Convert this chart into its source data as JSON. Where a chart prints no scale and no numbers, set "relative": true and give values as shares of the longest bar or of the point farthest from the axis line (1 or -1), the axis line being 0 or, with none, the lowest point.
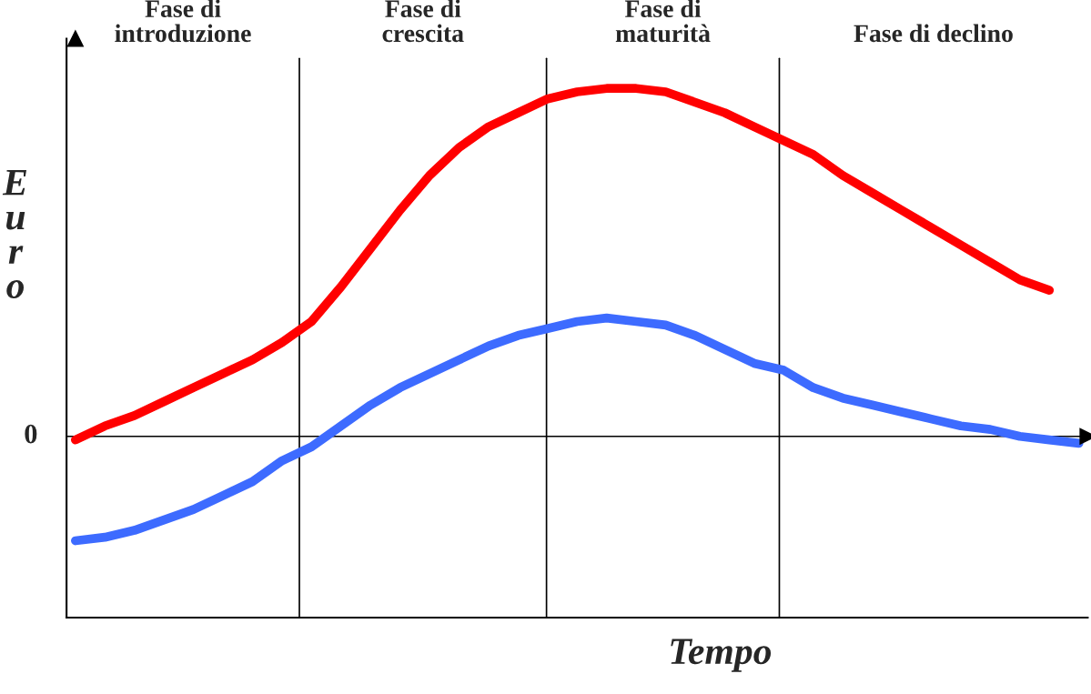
{
  "chart_data": {
    "type": "line",
    "relative": true,
    "xlabel": "Tempo",
    "ylabel": "E\nu\nr\no",
    "line_style": "solid",
    "categories": [
      null,
      null,
      null,
      null,
      null,
      null,
      null,
      null,
      null,
      null,
      null,
      null,
      null,
      null,
      null,
      null,
      null,
      null,
      null,
      null,
      null,
      null,
      null,
      null,
      null,
      null,
      null,
      null,
      null,
      null,
      null,
      null,
      null,
      null,
      null
    ],
    "series": [
      {
        "color": "#ff0000",
        "values": [
          -0.01,
          0.03,
          0.06,
          0.1,
          0.14,
          0.18,
          0.22,
          0.27,
          0.33,
          0.43,
          0.54,
          0.65,
          0.75,
          0.83,
          0.89,
          0.93,
          0.97,
          0.99,
          1.0,
          1.0,
          0.99,
          0.96,
          0.93,
          0.89,
          0.85,
          0.81,
          0.75,
          0.7,
          0.65,
          0.6,
          0.55,
          0.5,
          0.45,
          0.42,
          null
        ]
      },
      {
        "color": "#3d6bff",
        "values": [
          -0.3,
          -0.29,
          -0.27,
          -0.24,
          -0.21,
          -0.17,
          -0.13,
          -0.07,
          -0.03,
          0.03,
          0.09,
          0.14,
          0.18,
          0.22,
          0.26,
          0.29,
          0.31,
          0.33,
          0.34,
          0.33,
          0.32,
          0.29,
          0.25,
          0.21,
          0.19,
          0.14,
          0.11,
          0.09,
          0.07,
          0.05,
          0.03,
          0.02,
          0.0,
          -0.01,
          -0.02
        ]
      }
    ],
    "ref_lines": [
      {
        "axis": "y",
        "value": 0,
        "label": "0",
        "color": "#000000"
      }
    ],
    "annotations": [
      "Fase di\nintroduzione",
      "Fase di\ncrescita",
      "Fase di\nmaturità",
      "Fase di declino"
    ]
  }
}
